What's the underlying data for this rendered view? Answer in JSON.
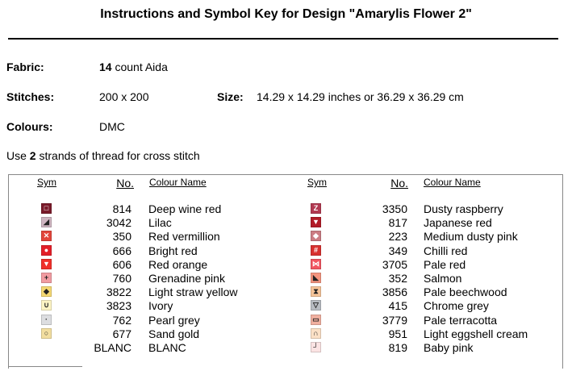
{
  "title": "Instructions and Symbol Key for Design \"Amarylis Flower 2\"",
  "fabric": {
    "label": "Fabric:",
    "count": "14",
    "value": " count Aida"
  },
  "stitches": {
    "label": "Stitches:",
    "value": "200 x 200"
  },
  "size": {
    "label": "Size:",
    "value": "14.29 x 14.29 inches or 36.29 x 36.29 cm"
  },
  "colours": {
    "label": "Colours:",
    "value": "DMC"
  },
  "note": {
    "pre": "Use ",
    "num": "2",
    "post": " strands of thread for cross stitch"
  },
  "headers": {
    "sym": "Sym",
    "no": "No.",
    "name": "Colour Name"
  },
  "left_rows": [
    {
      "no": "814",
      "name": "Deep wine red",
      "color": "#7a1a2a",
      "glyph": "□",
      "icon": "hollow-square"
    },
    {
      "no": "3042",
      "name": "Lilac",
      "color": "#cfb5c1",
      "glyph": "◢",
      "icon": "corner-triangle"
    },
    {
      "no": "350",
      "name": "Red vermillion",
      "color": "#e2453b",
      "glyph": "✕",
      "icon": "cross"
    },
    {
      "no": "666",
      "name": "Bright red",
      "color": "#e31e28",
      "glyph": "●",
      "icon": "circle"
    },
    {
      "no": "606",
      "name": "Red orange",
      "color": "#f0302a",
      "glyph": "▼",
      "icon": "down-triangle"
    },
    {
      "no": "760",
      "name": "Grenadine pink",
      "color": "#f19ca1",
      "glyph": "+",
      "icon": "plus"
    },
    {
      "no": "3822",
      "name": "Light straw yellow",
      "color": "#f4d873",
      "glyph": "◆",
      "icon": "diamond"
    },
    {
      "no": "3823",
      "name": "Ivory",
      "color": "#fdf4c4",
      "glyph": "∪",
      "icon": "cup"
    },
    {
      "no": "762",
      "name": "Pearl grey",
      "color": "#dcdde0",
      "glyph": "·",
      "icon": "dot"
    },
    {
      "no": "677",
      "name": "Sand gold",
      "color": "#f2dea0",
      "glyph": "○",
      "icon": "ring"
    },
    {
      "no": "BLANC",
      "name": "BLANC",
      "color": "#ffffff",
      "glyph": "",
      "icon": "blank"
    }
  ],
  "right_rows": [
    {
      "no": "3350",
      "name": "Dusty raspberry",
      "color": "#b23a52",
      "glyph": "Z",
      "icon": "z-letter"
    },
    {
      "no": "817",
      "name": "Japanese red",
      "color": "#b21c28",
      "glyph": "▼",
      "icon": "down-triangle"
    },
    {
      "no": "223",
      "name": "Medium dusty pink",
      "color": "#cc7d84",
      "glyph": "◆",
      "icon": "diamond"
    },
    {
      "no": "349",
      "name": "Chilli red",
      "color": "#d8302f",
      "glyph": "#",
      "icon": "hash"
    },
    {
      "no": "3705",
      "name": "Pale red",
      "color": "#f25561",
      "glyph": "⋈",
      "icon": "bowtie"
    },
    {
      "no": "352",
      "name": "Salmon",
      "color": "#f4957f",
      "glyph": "◣",
      "icon": "corner-triangle"
    },
    {
      "no": "3856",
      "name": "Pale beechwood",
      "color": "#f5c499",
      "glyph": "⧗",
      "icon": "hourglass"
    },
    {
      "no": "415",
      "name": "Chrome grey",
      "color": "#b8bcc2",
      "glyph": "▽",
      "icon": "down-triangle-outline"
    },
    {
      "no": "3779",
      "name": "Pale terracotta",
      "color": "#f1b0a0",
      "glyph": "▭",
      "icon": "rectangle"
    },
    {
      "no": "951",
      "name": "Light eggshell cream",
      "color": "#fbe0c6",
      "glyph": "∩",
      "icon": "arch"
    },
    {
      "no": "819",
      "name": "Baby pink",
      "color": "#fbe3e3",
      "glyph": "┘",
      "icon": "corner"
    }
  ]
}
